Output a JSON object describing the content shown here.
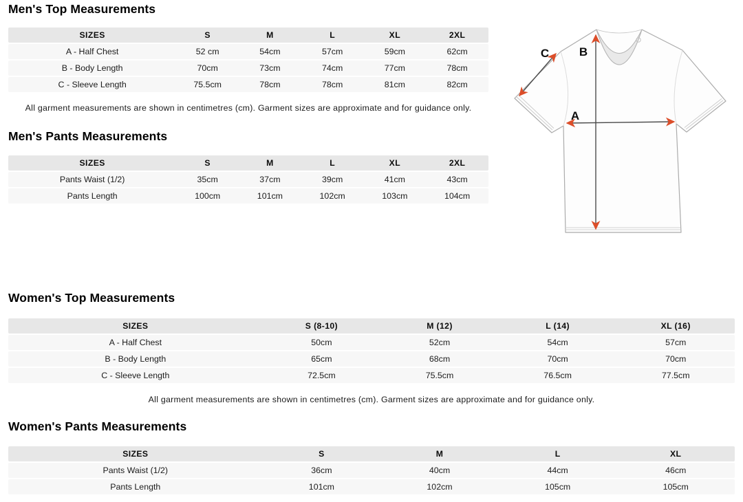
{
  "sections": {
    "mens_top": {
      "title": "Men's Top Measurements",
      "table": {
        "headers": [
          "SIZES",
          "S",
          "M",
          "L",
          "XL",
          "2XL"
        ],
        "rows": [
          [
            "A - Half Chest",
            "52 cm",
            "54cm",
            "57cm",
            "59cm",
            "62cm"
          ],
          [
            "B - Body Length",
            "70cm",
            "73cm",
            "74cm",
            "77cm",
            "78cm"
          ],
          [
            "C - Sleeve Length",
            "75.5cm",
            "78cm",
            "78cm",
            "81cm",
            "82cm"
          ]
        ]
      },
      "note": "All garment measurements are shown in centimetres (cm). Garment sizes are approximate and for guidance only."
    },
    "mens_pants": {
      "title": "Men's Pants Measurements",
      "table": {
        "headers": [
          "SIZES",
          "S",
          "M",
          "L",
          "XL",
          "2XL"
        ],
        "rows": [
          [
            "Pants Waist (1/2)",
            "35cm",
            "37cm",
            "39cm",
            "41cm",
            "43cm"
          ],
          [
            "Pants Length",
            "100cm",
            "101cm",
            "102cm",
            "103cm",
            "104cm"
          ]
        ]
      }
    },
    "womens_top": {
      "title": "Women's Top Measurements",
      "table": {
        "headers": [
          "SIZES",
          "S (8-10)",
          "M (12)",
          "L (14)",
          "XL (16)"
        ],
        "rows": [
          [
            "A - Half Chest",
            "50cm",
            "52cm",
            "54cm",
            "57cm"
          ],
          [
            "B - Body Length",
            "65cm",
            "68cm",
            "70cm",
            "70cm"
          ],
          [
            "C - Sleeve Length",
            "72.5cm",
            "75.5cm",
            "76.5cm",
            "77.5cm"
          ]
        ]
      },
      "note": "All garment measurements are shown in centimetres (cm). Garment sizes are approximate and for guidance only."
    },
    "womens_pants": {
      "title": "Women's Pants Measurements",
      "table": {
        "headers": [
          "SIZES",
          "S",
          "M",
          "L",
          "XL"
        ],
        "rows": [
          [
            "Pants Waist (1/2)",
            "36cm",
            "40cm",
            "44cm",
            "46cm"
          ],
          [
            "Pants Length",
            "101cm",
            "102cm",
            "105cm",
            "105cm"
          ]
        ]
      }
    }
  },
  "diagram": {
    "labels": {
      "half_chest": "A",
      "body_length": "B",
      "sleeve_length": "C"
    },
    "arrow_color": "#dc4e2a",
    "line_color": "#4a4a4a"
  }
}
